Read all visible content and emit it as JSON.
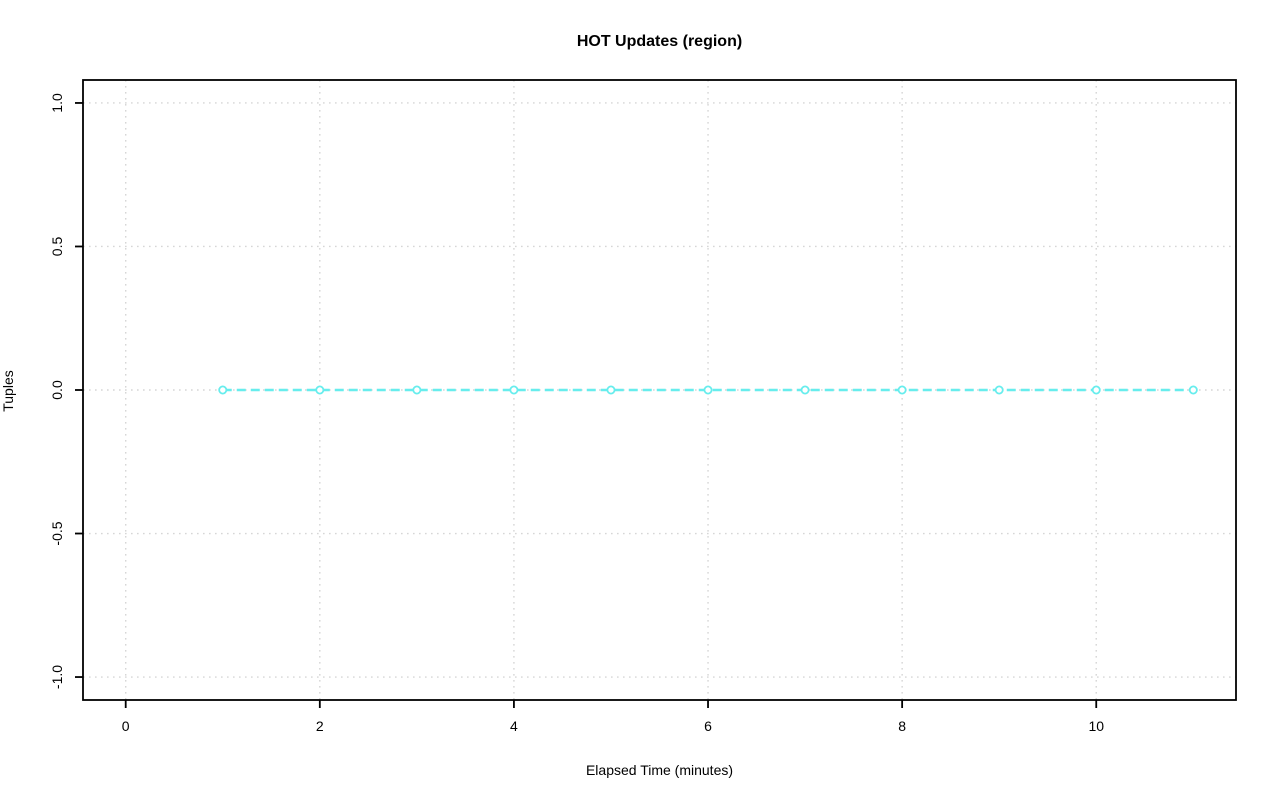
{
  "chart_data": {
    "type": "line",
    "title": "HOT Updates (region)",
    "xlabel": "Elapsed Time (minutes)",
    "ylabel": "Tuples",
    "x": [
      1,
      2,
      3,
      4,
      5,
      6,
      7,
      8,
      9,
      10,
      11
    ],
    "series": [
      {
        "name": "HOT Updates",
        "values": [
          0,
          0,
          0,
          0,
          0,
          0,
          0,
          0,
          0,
          0,
          0
        ]
      }
    ],
    "xticks": [
      0,
      2,
      4,
      6,
      8,
      10
    ],
    "xtick_labels": [
      "0",
      "2",
      "4",
      "6",
      "8",
      "10"
    ],
    "yticks": [
      -1.0,
      -0.5,
      0.0,
      0.5,
      1.0
    ],
    "ytick_labels": [
      "-1.0",
      "-0.5",
      "0.0",
      "0.5",
      "1.0"
    ],
    "xlim": [
      -0.44,
      11.44
    ],
    "ylim": [
      -1.08,
      1.08
    ],
    "grid": true,
    "grid_style": "dotted",
    "legend": "none",
    "marker": "open-circle",
    "line_style": "dashed",
    "colors": {
      "series": "#67eded",
      "grid": "#d6d6d6",
      "axis": "#000000",
      "background": "#ffffff"
    }
  }
}
